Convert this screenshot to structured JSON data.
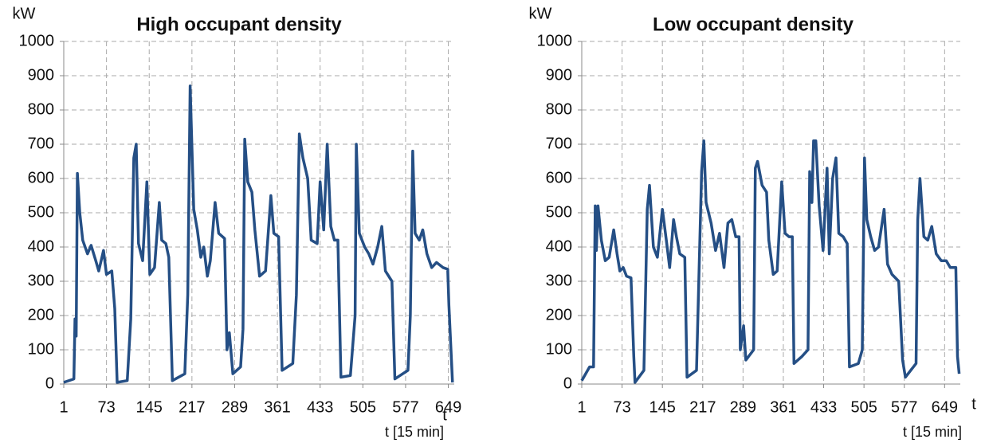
{
  "chart_data": [
    {
      "type": "line",
      "title": "High occupant density",
      "y_label": "kW",
      "x_end_label": "t",
      "x_label": "t [15 min]",
      "xlim": [
        1,
        659
      ],
      "xticks": [
        1,
        73,
        145,
        217,
        289,
        361,
        433,
        505,
        577,
        649
      ],
      "ylim": [
        0,
        1000
      ],
      "yticks": [
        0,
        100,
        200,
        300,
        400,
        500,
        600,
        700,
        800,
        900,
        1000
      ],
      "grid": true,
      "color": "#254f85",
      "x": [
        1,
        18,
        20,
        22,
        24,
        28,
        33,
        41,
        47,
        55,
        60,
        68,
        73,
        82,
        87,
        91,
        108,
        114,
        119,
        123,
        127,
        134,
        141,
        146,
        154,
        162,
        166,
        173,
        178,
        184,
        205,
        210,
        214,
        220,
        226,
        232,
        237,
        243,
        248,
        256,
        262,
        272,
        276,
        280,
        286,
        299,
        303,
        306,
        311,
        318,
        323,
        331,
        341,
        350,
        355,
        363,
        369,
        387,
        393,
        398,
        404,
        412,
        418,
        428,
        433,
        439,
        445,
        451,
        457,
        463,
        468,
        484,
        492,
        494,
        499,
        508,
        515,
        522,
        530,
        537,
        543,
        554,
        559,
        581,
        585,
        589,
        593,
        600,
        606,
        613,
        621,
        629,
        640,
        648,
        650,
        656
      ],
      "values": [
        5,
        15,
        190,
        140,
        615,
        500,
        420,
        380,
        405,
        360,
        330,
        390,
        320,
        330,
        220,
        5,
        10,
        190,
        660,
        700,
        410,
        360,
        590,
        320,
        340,
        530,
        420,
        410,
        370,
        10,
        30,
        260,
        870,
        510,
        450,
        370,
        400,
        315,
        360,
        530,
        440,
        425,
        100,
        150,
        30,
        50,
        160,
        715,
        590,
        560,
        450,
        315,
        330,
        550,
        440,
        430,
        40,
        60,
        260,
        730,
        660,
        600,
        420,
        410,
        590,
        450,
        700,
        460,
        420,
        420,
        20,
        25,
        200,
        700,
        440,
        400,
        380,
        350,
        400,
        460,
        330,
        300,
        15,
        40,
        200,
        680,
        440,
        420,
        450,
        380,
        340,
        355,
        340,
        335,
        230,
        5
      ]
    },
    {
      "type": "line",
      "title": "Low occupant density",
      "y_label": "kW",
      "x_end_label": "t",
      "x_label": "t [15 min]",
      "xlim": [
        1,
        677
      ],
      "xticks": [
        1,
        73,
        145,
        217,
        289,
        361,
        433,
        505,
        577,
        649
      ],
      "ylim": [
        0,
        1000
      ],
      "yticks": [
        0,
        100,
        200,
        300,
        400,
        500,
        600,
        700,
        800,
        900,
        1000
      ],
      "grid": true,
      "color": "#254f85",
      "x": [
        1,
        15,
        22,
        25,
        27,
        30,
        36,
        43,
        50,
        58,
        64,
        69,
        75,
        81,
        89,
        94,
        96,
        112,
        118,
        122,
        129,
        136,
        145,
        152,
        158,
        165,
        170,
        176,
        185,
        189,
        206,
        215,
        219,
        223,
        232,
        240,
        247,
        255,
        262,
        269,
        276,
        282,
        284,
        290,
        294,
        308,
        311,
        315,
        323,
        331,
        335,
        343,
        350,
        358,
        364,
        371,
        377,
        380,
        394,
        405,
        408,
        412,
        415,
        419,
        425,
        432,
        439,
        443,
        449,
        455,
        460,
        468,
        475,
        479,
        495,
        502,
        506,
        510,
        517,
        524,
        531,
        541,
        547,
        555,
        567,
        574,
        579,
        598,
        601,
        605,
        612,
        619,
        626,
        634,
        643,
        652,
        659,
        669,
        672,
        675
      ],
      "values": [
        10,
        50,
        50,
        520,
        390,
        520,
        420,
        360,
        370,
        450,
        380,
        330,
        340,
        315,
        310,
        80,
        5,
        40,
        510,
        580,
        400,
        370,
        510,
        420,
        340,
        480,
        430,
        380,
        370,
        20,
        40,
        620,
        710,
        530,
        470,
        390,
        440,
        340,
        470,
        480,
        430,
        430,
        100,
        170,
        70,
        100,
        630,
        650,
        580,
        560,
        420,
        320,
        330,
        590,
        440,
        430,
        430,
        60,
        80,
        100,
        620,
        530,
        710,
        710,
        520,
        390,
        630,
        380,
        600,
        660,
        440,
        430,
        410,
        50,
        60,
        100,
        660,
        480,
        430,
        390,
        400,
        510,
        350,
        320,
        300,
        70,
        20,
        60,
        480,
        600,
        430,
        420,
        460,
        380,
        360,
        360,
        340,
        340,
        80,
        30
      ]
    }
  ]
}
